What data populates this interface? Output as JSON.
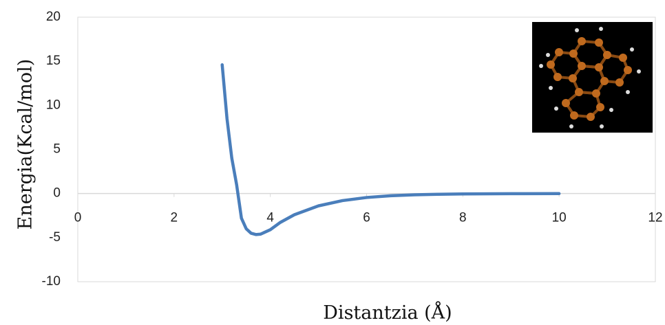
{
  "chart_data": {
    "type": "line",
    "xlabel": "Distantzia (Å)",
    "ylabel": "Energia(Kcal/mol)",
    "x": [
      3.0,
      3.1,
      3.2,
      3.3,
      3.4,
      3.5,
      3.6,
      3.7,
      3.8,
      4.0,
      4.2,
      4.5,
      5.0,
      5.5,
      6.0,
      6.5,
      7.0,
      7.5,
      8.0,
      9.0,
      10.0
    ],
    "series": [
      {
        "color": "#4a7ebb",
        "values": [
          14.6,
          8.5,
          4.0,
          1.0,
          -2.8,
          -4.0,
          -4.5,
          -4.65,
          -4.6,
          -4.1,
          -3.3,
          -2.4,
          -1.4,
          -0.8,
          -0.45,
          -0.25,
          -0.14,
          -0.08,
          -0.05,
          -0.02,
          -0.01
        ]
      }
    ],
    "xlim": [
      0,
      12
    ],
    "xticks": [
      0,
      2,
      4,
      6,
      8,
      10,
      12
    ],
    "ylim": [
      -10,
      20
    ],
    "yticks": [
      -10,
      -5,
      0,
      5,
      10,
      15,
      20
    ]
  }
}
